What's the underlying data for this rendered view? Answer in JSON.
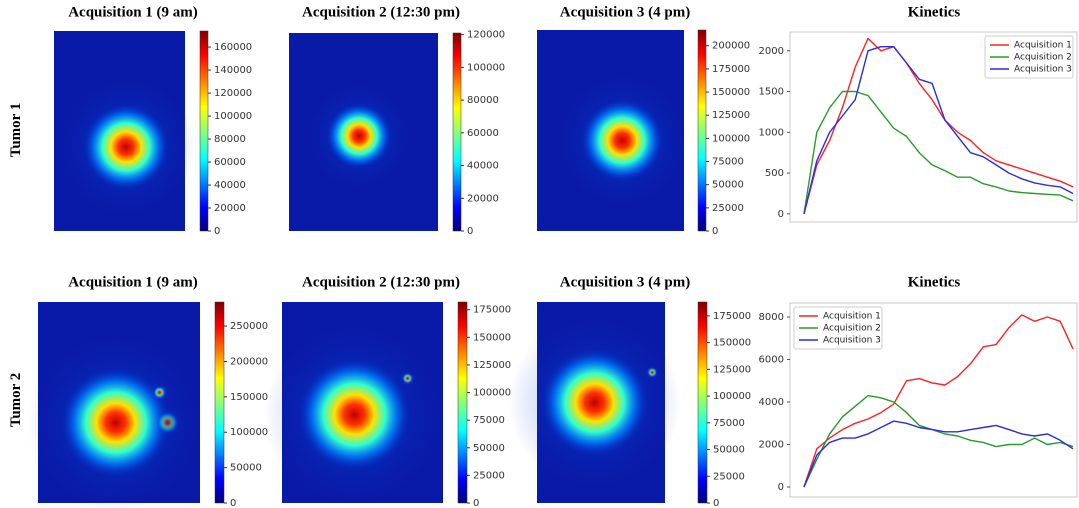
{
  "row_labels": [
    "Tumor 1",
    "Tumor 2"
  ],
  "chart_data": [
    {
      "type": "heatmap",
      "title": "Acquisition 1 (9 am)",
      "clim": [
        0,
        174000
      ],
      "cticks": [
        0,
        20000,
        40000,
        60000,
        80000,
        100000,
        120000,
        140000,
        160000
      ]
    },
    {
      "type": "heatmap",
      "title": "Acquisition 2 (12:30 pm)",
      "clim": [
        0,
        121000
      ],
      "cticks": [
        0,
        20000,
        40000,
        60000,
        80000,
        100000,
        120000
      ]
    },
    {
      "type": "heatmap",
      "title": "Acquisition 3 (4 pm)",
      "clim": [
        0,
        217000
      ],
      "cticks": [
        0,
        25000,
        50000,
        75000,
        100000,
        125000,
        150000,
        175000,
        200000
      ]
    },
    {
      "type": "line",
      "title": "Kinetics",
      "ylim": [
        -100,
        2230
      ],
      "yticks": [
        0,
        500,
        1000,
        1500,
        2000
      ],
      "legend": "upper right",
      "series": [
        {
          "name": "Acquisition 1",
          "color": "#ff2020",
          "values": [
            0,
            600,
            900,
            1300,
            1800,
            2150,
            2000,
            2050,
            1850,
            1600,
            1400,
            1150,
            1000,
            900,
            750,
            650,
            600,
            550,
            500,
            450,
            400,
            330
          ]
        },
        {
          "name": "Acquisition 2",
          "color": "#2a9a2a",
          "values": [
            0,
            1000,
            1300,
            1500,
            1500,
            1450,
            1250,
            1050,
            950,
            750,
            600,
            530,
            450,
            450,
            370,
            330,
            280,
            260,
            250,
            240,
            230,
            160
          ]
        },
        {
          "name": "Acquisition 3",
          "color": "#2a2aee",
          "values": [
            0,
            650,
            1000,
            1200,
            1400,
            2000,
            2050,
            2050,
            1850,
            1650,
            1600,
            1150,
            950,
            750,
            700,
            600,
            500,
            430,
            380,
            350,
            330,
            250
          ]
        }
      ]
    },
    {
      "type": "heatmap",
      "title": "Acquisition 1 (9 am)",
      "clim": [
        0,
        284000
      ],
      "cticks": [
        0,
        50000,
        100000,
        150000,
        200000,
        250000
      ]
    },
    {
      "type": "heatmap",
      "title": "Acquisition 2 (12:30 pm)",
      "clim": [
        0,
        182000
      ],
      "cticks": [
        0,
        25000,
        50000,
        75000,
        100000,
        125000,
        150000,
        175000
      ]
    },
    {
      "type": "heatmap",
      "title": "Acquisition 3 (4 pm)",
      "clim": [
        0,
        188000
      ],
      "cticks": [
        0,
        25000,
        50000,
        75000,
        100000,
        125000,
        150000,
        175000
      ]
    },
    {
      "type": "line",
      "title": "Kinetics",
      "ylim": [
        -470,
        8660
      ],
      "yticks": [
        0,
        2000,
        4000,
        6000,
        8000
      ],
      "legend": "upper left",
      "series": [
        {
          "name": "Acquisition 1",
          "color": "#ff2020",
          "values": [
            0,
            1800,
            2300,
            2700,
            3000,
            3200,
            3500,
            3900,
            5000,
            5100,
            4900,
            4800,
            5200,
            5800,
            6600,
            6700,
            7500,
            8100,
            7800,
            8000,
            7800,
            6500
          ]
        },
        {
          "name": "Acquisition 2",
          "color": "#2a9a2a",
          "values": [
            0,
            1300,
            2500,
            3300,
            3800,
            4300,
            4200,
            4000,
            3500,
            2900,
            2700,
            2500,
            2400,
            2200,
            2100,
            1900,
            2000,
            2000,
            2300,
            2000,
            2100,
            1900
          ]
        },
        {
          "name": "Acquisition 3",
          "color": "#2a2aee",
          "values": [
            0,
            1500,
            2100,
            2300,
            2300,
            2500,
            2800,
            3100,
            3000,
            2800,
            2700,
            2600,
            2600,
            2700,
            2800,
            2900,
            2700,
            2500,
            2400,
            2500,
            2200,
            1800
          ]
        }
      ]
    }
  ]
}
